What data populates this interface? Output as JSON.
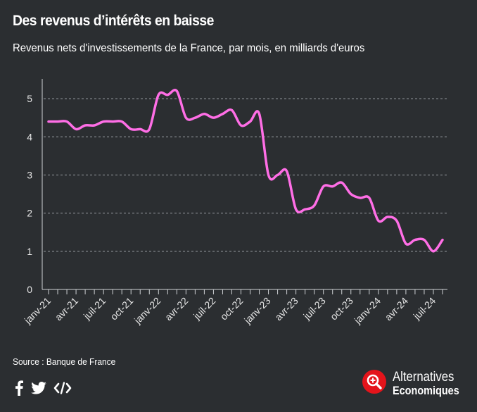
{
  "header": {
    "title": "Des revenus d’intérêts en baisse",
    "subtitle": "Revenus nets d'investissements de la France, par mois, en milliards d'euros"
  },
  "chart_data": {
    "type": "line",
    "title": "Des revenus d’intérêts en baisse",
    "subtitle": "Revenus nets d'investissements de la France, par mois, en milliards d'euros",
    "xlabel": "",
    "ylabel": "",
    "ylim": [
      0,
      5.5
    ],
    "yticks": [
      0,
      1,
      2,
      3,
      4,
      5
    ],
    "grid": true,
    "legend": "none",
    "line_color": "#ff6ee6",
    "x_tick_labels": [
      "janv-21",
      "avr-21",
      "juil-21",
      "oct-21",
      "janv-22",
      "avr-22",
      "juil-22",
      "oct-22",
      "janv-23",
      "avr-23",
      "juil-23",
      "oct-23",
      "janv-24",
      "avr-24",
      "juil-24"
    ],
    "x": [
      "2021-01",
      "2021-02",
      "2021-03",
      "2021-04",
      "2021-05",
      "2021-06",
      "2021-07",
      "2021-08",
      "2021-09",
      "2021-10",
      "2021-11",
      "2021-12",
      "2022-01",
      "2022-02",
      "2022-03",
      "2022-04",
      "2022-05",
      "2022-06",
      "2022-07",
      "2022-08",
      "2022-09",
      "2022-10",
      "2022-11",
      "2022-12",
      "2023-01",
      "2023-02",
      "2023-03",
      "2023-04",
      "2023-05",
      "2023-06",
      "2023-07",
      "2023-08",
      "2023-09",
      "2023-10",
      "2023-11",
      "2023-12",
      "2024-01",
      "2024-02",
      "2024-03",
      "2024-04",
      "2024-05",
      "2024-06",
      "2024-07",
      "2024-08"
    ],
    "series": [
      {
        "values": [
          4.4,
          4.4,
          4.4,
          4.2,
          4.3,
          4.3,
          4.4,
          4.4,
          4.4,
          4.2,
          4.2,
          4.2,
          5.1,
          5.1,
          5.2,
          4.5,
          4.5,
          4.6,
          4.5,
          4.6,
          4.7,
          4.3,
          4.4,
          4.6,
          3.0,
          3.0,
          3.1,
          2.1,
          2.1,
          2.2,
          2.7,
          2.7,
          2.8,
          2.5,
          2.4,
          2.4,
          1.8,
          1.9,
          1.8,
          1.2,
          1.3,
          1.3,
          1.0,
          1.3
        ]
      }
    ]
  },
  "footer": {
    "source": "Source : Banque de France",
    "logo_line1": "Alternatives",
    "logo_line2": "Economiques"
  },
  "icons": [
    "facebook-icon",
    "twitter-icon",
    "embed-icon",
    "magnifier-logo-icon"
  ],
  "colors": {
    "background": "#2b2e31",
    "line": "#ff6ee6",
    "logo_red": "#e4141b"
  }
}
